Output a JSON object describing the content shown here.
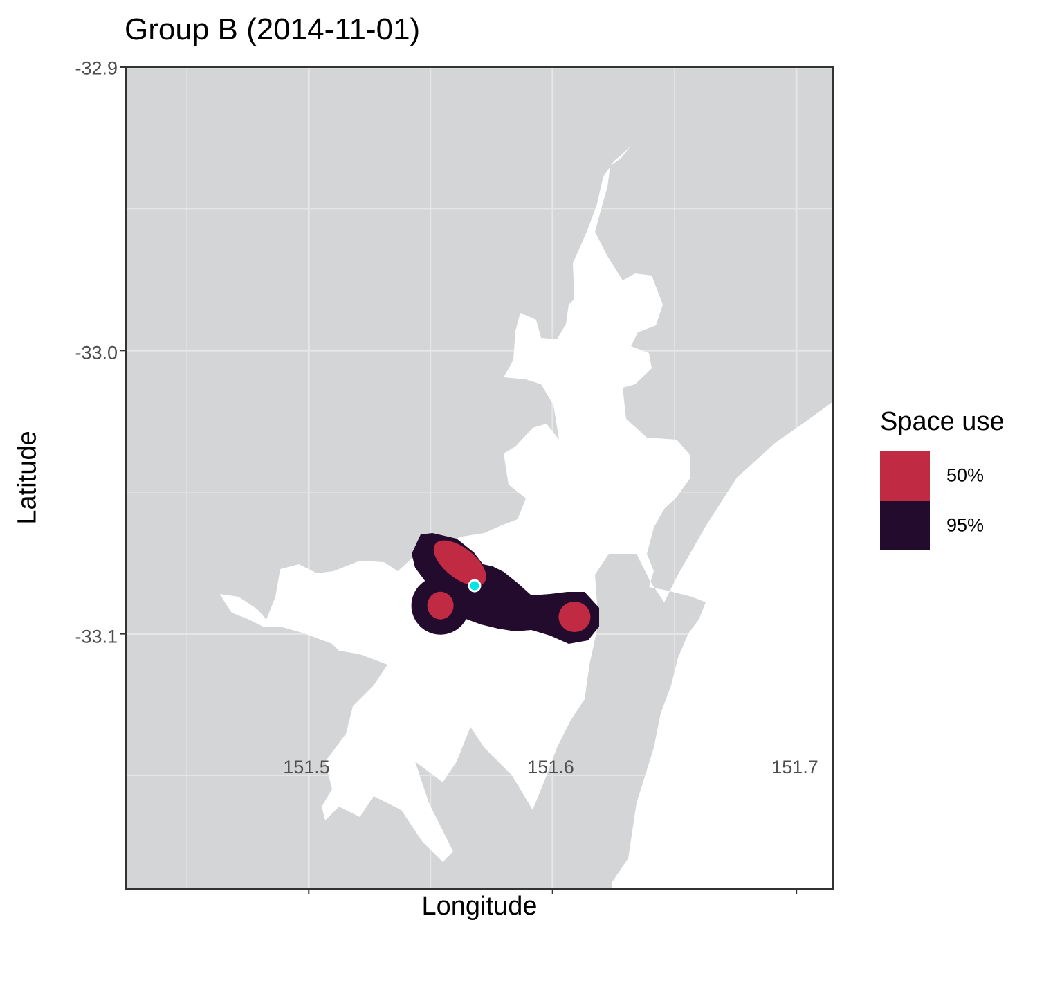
{
  "title": "Group B (2014-11-01)",
  "x_axis": {
    "label": "Longitude",
    "ticks": [
      "151.5",
      "151.6",
      "151.7"
    ]
  },
  "y_axis": {
    "label": "Latitude",
    "ticks": [
      "-32.9",
      "-33.0",
      "-33.1"
    ]
  },
  "legend": {
    "title": "Space use",
    "items": [
      {
        "label": "50%",
        "color": "#c02a42"
      },
      {
        "label": "95%",
        "color": "#220b2d"
      }
    ]
  },
  "colors": {
    "land": "#d4d5d7",
    "water": "#ffffff",
    "point_fill": "#00e5e5",
    "point_stroke": "#ffffff",
    "frame": "#333333",
    "grid": "#e6e6e6"
  },
  "chart_data": {
    "type": "map",
    "xlim": [
      151.425,
      151.715
    ],
    "ylim": [
      -33.19,
      -32.9
    ],
    "grid": true,
    "major_x": [
      151.5,
      151.6,
      151.7
    ],
    "major_y": [
      -32.9,
      -33.0,
      -33.1
    ],
    "minor_x": [
      151.45,
      151.55,
      151.65
    ],
    "minor_y": [
      -32.95,
      -33.05,
      -33.15
    ],
    "legend_position": "right",
    "space_use_contours": [
      {
        "level": "95%",
        "color": "#220b2d"
      },
      {
        "level": "50%",
        "color": "#c02a42",
        "centers": [
          {
            "lon": 151.554,
            "lat": -33.09
          },
          {
            "lon": 151.562,
            "lat": -33.075
          },
          {
            "lon": 151.609,
            "lat": -33.094
          }
        ]
      }
    ],
    "location_point": {
      "lon": 151.568,
      "lat": -33.083
    }
  }
}
